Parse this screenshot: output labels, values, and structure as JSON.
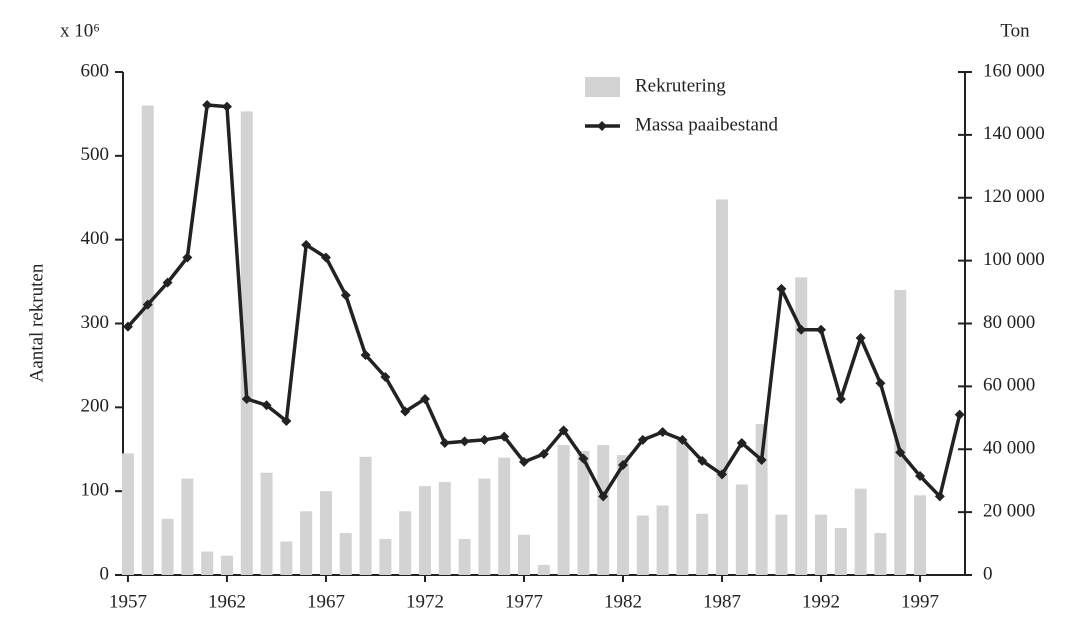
{
  "chart_data": {
    "type": "bar-line",
    "unit_label": "x 10⁶",
    "y_label": "Aantal rekruten",
    "y2_label": "Ton",
    "x": [
      1957,
      1958,
      1959,
      1960,
      1961,
      1962,
      1963,
      1964,
      1965,
      1966,
      1967,
      1968,
      1969,
      1970,
      1971,
      1972,
      1973,
      1974,
      1975,
      1976,
      1977,
      1978,
      1979,
      1980,
      1981,
      1982,
      1983,
      1984,
      1985,
      1986,
      1987,
      1988,
      1989,
      1990,
      1991,
      1992,
      1993,
      1994,
      1995,
      1996,
      1997,
      1998,
      1999
    ],
    "xlim": [
      1956.75,
      1999.27
    ],
    "xticks": [
      1957,
      1962,
      1967,
      1972,
      1977,
      1982,
      1987,
      1992,
      1997
    ],
    "ylim": [
      0,
      600
    ],
    "yticks": [
      0,
      100,
      200,
      300,
      400,
      500,
      600
    ],
    "y2lim": [
      0,
      160000
    ],
    "y2ticks": [
      {
        "value": 0,
        "label": "0"
      },
      {
        "value": 20000,
        "label": "20 000"
      },
      {
        "value": 40000,
        "label": "40 000"
      },
      {
        "value": 60000,
        "label": "60 000"
      },
      {
        "value": 80000,
        "label": "80 000"
      },
      {
        "value": 100000,
        "label": "100 000"
      },
      {
        "value": 120000,
        "label": "120 000"
      },
      {
        "value": 140000,
        "label": "140 000"
      },
      {
        "value": 160000,
        "label": "160 000"
      }
    ],
    "legend_position": "top-right",
    "series": [
      {
        "name": "Rekrutering",
        "type": "bar",
        "color": "#d3d3d3",
        "values": [
          145,
          560,
          67,
          115,
          28,
          23,
          553,
          122,
          40,
          76,
          100,
          50,
          141,
          43,
          76,
          106,
          111,
          43,
          115,
          140,
          48,
          12,
          155,
          148,
          155,
          143,
          71,
          83,
          160,
          73,
          448,
          108,
          180,
          72,
          355,
          72,
          56,
          103,
          50,
          340,
          95,
          null,
          null
        ]
      },
      {
        "name": "Massa paaibestand",
        "type": "line",
        "axis": "y2",
        "color": "#222222",
        "values": [
          79000,
          86000,
          93000,
          101000,
          149500,
          149000,
          56000,
          54000,
          49000,
          105000,
          101000,
          89000,
          70000,
          63000,
          52000,
          56000,
          42000,
          42500,
          43000,
          44000,
          36000,
          38500,
          46000,
          37000,
          25000,
          35000,
          43000,
          45500,
          43000,
          36300,
          32000,
          42000,
          36600,
          91000,
          78000,
          78000,
          56000,
          75400,
          61000,
          39000,
          31500,
          25000,
          51000
        ]
      }
    ]
  }
}
